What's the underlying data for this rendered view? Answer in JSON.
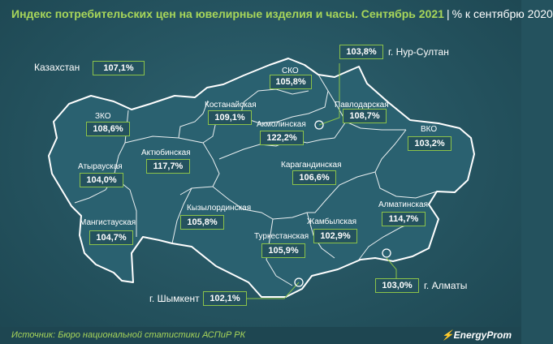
{
  "header": {
    "title": "Индекс потребительских цен на ювелирные изделия и часы. Сентябрь 2021",
    "separator": "|",
    "subtitle": "% к сентябрю 2020"
  },
  "country": {
    "label": "Казахстан",
    "value": "107,1%"
  },
  "regions": [
    {
      "name": "СКО",
      "value": "105,8%"
    },
    {
      "name": "Костанайская",
      "value": "109,1%"
    },
    {
      "name": "Акмолинская",
      "value": "122,2%"
    },
    {
      "name": "Павлодарская",
      "value": "108,7%"
    },
    {
      "name": "ЗКО",
      "value": "108,6%"
    },
    {
      "name": "ВКО",
      "value": "103,2%"
    },
    {
      "name": "Актюбинская",
      "value": "117,7%"
    },
    {
      "name": "Атырауская",
      "value": "104,0%"
    },
    {
      "name": "Карагандинская",
      "value": "106,6%"
    },
    {
      "name": "Кызылординская",
      "value": "105,8%"
    },
    {
      "name": "Мангистауская",
      "value": "104,7%"
    },
    {
      "name": "Алматинская",
      "value": "114,7%"
    },
    {
      "name": "Жамбылская",
      "value": "102,9%"
    },
    {
      "name": "Туркестанская",
      "value": "105,9%"
    }
  ],
  "cities": [
    {
      "name": "г. Нур-Султан",
      "value": "103,8%"
    },
    {
      "name": "г. Шымкент",
      "value": "102,1%"
    },
    {
      "name": "г. Алматы",
      "value": "103,0%"
    }
  ],
  "footer": {
    "source": "Источник: Бюро национальной статистики АСПиР РК",
    "brand": "EnergyProm"
  },
  "colors": {
    "accent": "#8bc34a",
    "title": "#a8d65a",
    "background": "#24525e",
    "land": "#2a6170",
    "border": "#ffffff"
  }
}
